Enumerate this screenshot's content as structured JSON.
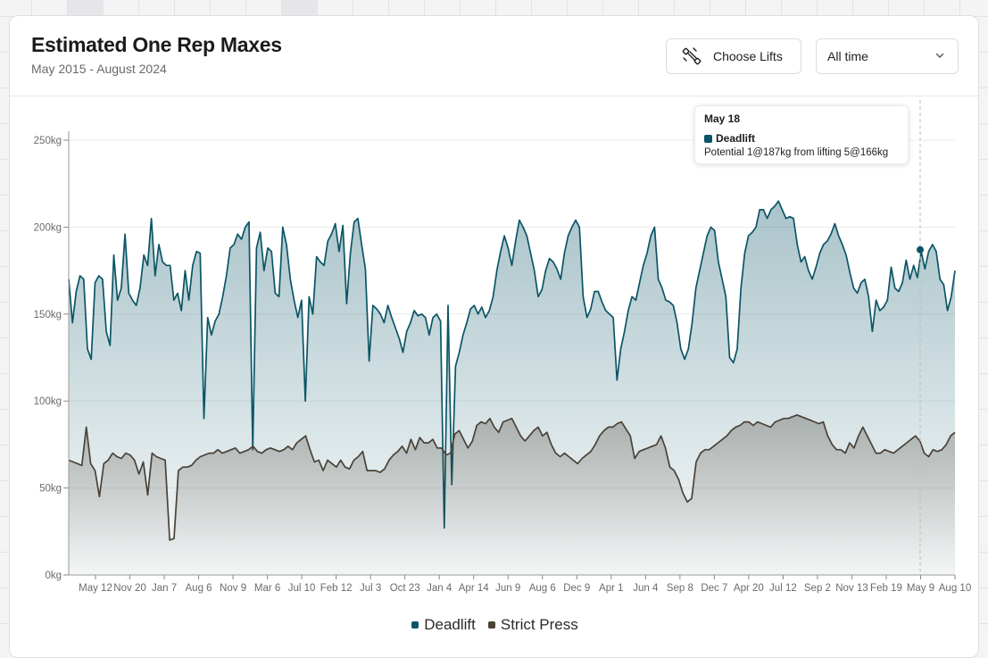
{
  "header": {
    "title": "Estimated One Rep Maxes",
    "subtitle": "May 2015 - August 2024",
    "choose_lifts_label": "Choose Lifts",
    "range_select_value": "All time"
  },
  "tooltip": {
    "date": "May 18",
    "series": "Deadlift",
    "detail": "Potential 1@187kg from lifting 5@166kg"
  },
  "colors": {
    "deadlift": "#0b5566",
    "strict_press": "#4a4237"
  },
  "chart_data": {
    "type": "area",
    "x_tick_labels": [
      "May 12",
      "Nov 20",
      "Jan 7",
      "Aug 6",
      "Nov 9",
      "Mar 6",
      "Jul 10",
      "Feb 12",
      "Jul 3",
      "Oct 23",
      "Jan 4",
      "Apr 14",
      "Jun 9",
      "Aug 6",
      "Dec 9",
      "Apr 1",
      "Jun 4",
      "Sep 8",
      "Dec 7",
      "Apr 20",
      "Jul 12",
      "Sep 2",
      "Nov 13",
      "Feb 19",
      "May 9",
      "Aug 10"
    ],
    "y_tick_labels": [
      "0kg",
      "50kg",
      "100kg",
      "150kg",
      "200kg",
      "250kg"
    ],
    "ylim": [
      0,
      250
    ],
    "legend_position": "bottom",
    "series": [
      {
        "name": "Deadlift",
        "values": [
          170,
          145,
          163,
          172,
          170,
          130,
          124,
          168,
          172,
          170,
          140,
          132,
          184,
          158,
          165,
          196,
          162,
          158,
          155,
          165,
          184,
          178,
          205,
          172,
          190,
          180,
          178,
          178,
          158,
          162,
          152,
          175,
          158,
          178,
          186,
          185,
          90,
          148,
          138,
          146,
          150,
          160,
          172,
          188,
          190,
          196,
          193,
          200,
          203,
          72,
          188,
          197,
          175,
          188,
          186,
          162,
          160,
          200,
          190,
          170,
          158,
          148,
          158,
          100,
          160,
          150,
          183,
          180,
          178,
          192,
          196,
          202,
          186,
          201,
          156,
          185,
          203,
          205,
          190,
          176,
          123,
          155,
          153,
          150,
          145,
          155,
          148,
          142,
          136,
          128,
          140,
          145,
          152,
          149,
          150,
          148,
          138,
          148,
          150,
          146,
          27,
          155,
          52,
          120,
          128,
          138,
          145,
          153,
          155,
          150,
          154,
          148,
          152,
          160,
          175,
          186,
          195,
          188,
          178,
          192,
          204,
          200,
          195,
          185,
          175,
          160,
          164,
          175,
          182,
          180,
          176,
          170,
          185,
          195,
          200,
          204,
          200,
          160,
          148,
          153,
          163,
          163,
          157,
          152,
          150,
          148,
          112,
          130,
          140,
          152,
          160,
          158,
          168,
          178,
          185,
          195,
          200,
          170,
          165,
          158,
          157,
          155,
          145,
          130,
          124,
          130,
          145,
          165,
          175,
          185,
          195,
          200,
          198,
          180,
          170,
          160,
          125,
          122,
          130,
          165,
          185,
          195,
          197,
          200,
          210,
          210,
          205,
          210,
          212,
          215,
          210,
          205,
          206,
          205,
          190,
          180,
          183,
          175,
          170,
          177,
          185,
          190,
          192,
          196,
          202,
          195,
          190,
          184,
          174,
          165,
          162,
          168,
          170,
          160,
          140,
          158,
          152,
          154,
          158,
          177,
          165,
          163,
          168,
          181,
          170,
          178,
          171,
          186,
          176,
          186,
          190,
          186,
          170,
          167,
          152,
          160,
          175
        ]
      },
      {
        "name": "Strict Press",
        "values": [
          66,
          65,
          64,
          63,
          85,
          64,
          60,
          45,
          64,
          66,
          70,
          68,
          67,
          70,
          69,
          66,
          58,
          65,
          46,
          70,
          68,
          67,
          66,
          20,
          21,
          60,
          62,
          62,
          63,
          66,
          68,
          69,
          70,
          70,
          72,
          70,
          71,
          72,
          73,
          70,
          71,
          72,
          74,
          71,
          70,
          72,
          73,
          72,
          71,
          72,
          74,
          72,
          76,
          78,
          80,
          72,
          65,
          66,
          60,
          66,
          64,
          62,
          66,
          62,
          61,
          66,
          68,
          71,
          60,
          60,
          60,
          59,
          61,
          66,
          69,
          71,
          74,
          70,
          78,
          72,
          79,
          76,
          76,
          78,
          73,
          73,
          69,
          70,
          81,
          83,
          78,
          73,
          77,
          86,
          88,
          87,
          90,
          85,
          82,
          88,
          89,
          90,
          85,
          80,
          77,
          80,
          83,
          85,
          80,
          82,
          75,
          70,
          68,
          70,
          68,
          66,
          64,
          67,
          69,
          71,
          75,
          80,
          83,
          85,
          85,
          87,
          88,
          84,
          80,
          67,
          71,
          72,
          73,
          74,
          75,
          80,
          73,
          62,
          60,
          55,
          47,
          42,
          44,
          65,
          70,
          72,
          72,
          74,
          76,
          78,
          80,
          83,
          85,
          86,
          88,
          88,
          86,
          88,
          87,
          86,
          85,
          88,
          89,
          90,
          90,
          91,
          92,
          91,
          90,
          89,
          88,
          87,
          88,
          80,
          75,
          72,
          72,
          70,
          76,
          73,
          80,
          85,
          80,
          75,
          70,
          70,
          72,
          71,
          70,
          72,
          74,
          76,
          78,
          80,
          77,
          70,
          68,
          72,
          71,
          72,
          75,
          80,
          82
        ]
      }
    ]
  }
}
